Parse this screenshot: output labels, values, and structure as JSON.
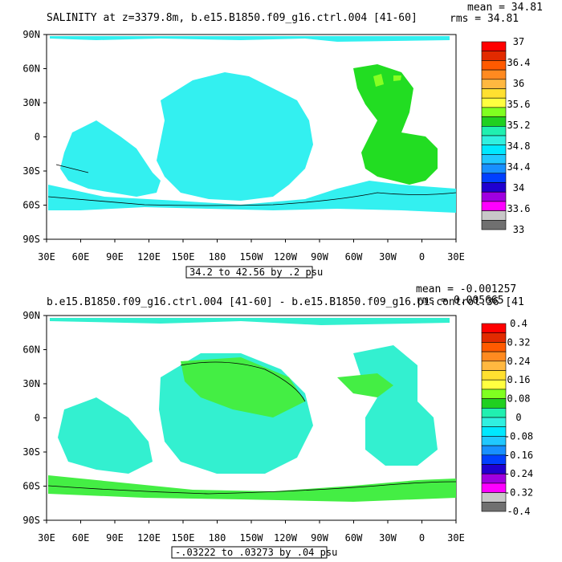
{
  "panels": [
    {
      "title": "SALINITY at z=3379.8m, b.e15.B1850.f09_g16.ctrl.004 [41-60]",
      "mean": "mean = 34.81",
      "rms": "rms = 34.81",
      "range_note": "34.2 to 42.56 by .2 psu",
      "x_ticks": [
        "30E",
        "60E",
        "90E",
        "120E",
        "150E",
        "180",
        "150W",
        "120W",
        "90W",
        "60W",
        "30W",
        "0",
        "30E"
      ],
      "y_ticks": [
        "90N",
        "60N",
        "30N",
        "0",
        "30S",
        "60S",
        "90S"
      ],
      "colorbar": {
        "labels": [
          "37",
          "36.4",
          "36",
          "35.6",
          "35.2",
          "34.8",
          "34.4",
          "34",
          "33.6",
          "33"
        ],
        "colors": [
          "#ff0000",
          "#e22a00",
          "#ff5a00",
          "#ff8a20",
          "#ffb840",
          "#ffe030",
          "#ffff40",
          "#80ff20",
          "#20d020",
          "#20f0b0",
          "#30f0e0",
          "#00e8ff",
          "#20c8ff",
          "#1890ff",
          "#0040ff",
          "#2000d0",
          "#a000e0",
          "#ff00ff",
          "#c8c8c8",
          "#707070"
        ]
      },
      "fill_color": "#33f0f0",
      "highlight_color": "#22dd22",
      "ocean_regions": [
        {
          "name": "cyan-ocean",
          "color": "#33f0f0"
        },
        {
          "name": "atlantic-green",
          "color": "#22dd22"
        }
      ]
    },
    {
      "title": "b.e15.B1850.f09_g16.ctrl.004 [41-60] - b.e15.B1850.f09_g16.pi.control.36 [41",
      "mean": "mean = -0.001257",
      "rms": "rms = 0.005665",
      "range_note": "-.03222 to .03273 by .04 psu",
      "x_ticks": [
        "30E",
        "60E",
        "90E",
        "120E",
        "150E",
        "180",
        "150W",
        "120W",
        "90W",
        "60W",
        "30W",
        "0",
        "30E"
      ],
      "y_ticks": [
        "90N",
        "60N",
        "30N",
        "0",
        "30S",
        "60S",
        "90S"
      ],
      "colorbar": {
        "labels": [
          "0.4",
          "0.32",
          "0.24",
          "0.16",
          "0.08",
          "0",
          "-0.08",
          "-0.16",
          "-0.24",
          "-0.32",
          "-0.4"
        ],
        "colors": [
          "#ff0000",
          "#e22a00",
          "#ff5a00",
          "#ff8a20",
          "#ffb840",
          "#ffe030",
          "#ffff40",
          "#80ff20",
          "#20d020",
          "#20f0b0",
          "#30f0e0",
          "#00e8ff",
          "#20c8ff",
          "#1890ff",
          "#0040ff",
          "#2000d0",
          "#a000e0",
          "#ff00ff",
          "#c8c8c8",
          "#707070"
        ]
      },
      "fill_color": "#33f0d0",
      "highlight_color": "#44ee44"
    }
  ]
}
